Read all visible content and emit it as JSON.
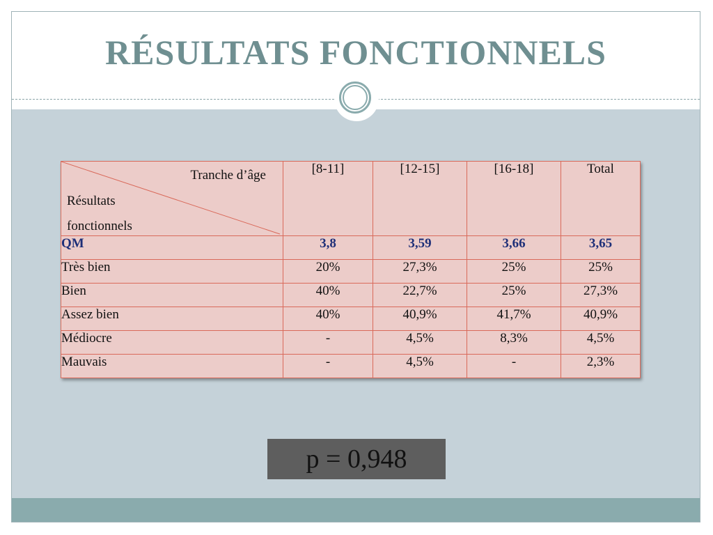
{
  "title": "RÉSULTATS  FONCTIONNELS",
  "table": {
    "corner_top": "Tranche d’âge",
    "corner_bottom_line1": "Résultats",
    "corner_bottom_line2": "fonctionnels",
    "columns": [
      "[8-11]",
      "[12-15]",
      "[16-18]",
      "Total"
    ],
    "rows": [
      {
        "label": "QM",
        "values": [
          "3,8",
          "3,59",
          "3,66",
          "3,65"
        ]
      },
      {
        "label": "Très bien",
        "values": [
          "20%",
          "27,3%",
          "25%",
          "25%"
        ]
      },
      {
        "label": "Bien",
        "values": [
          "40%",
          "22,7%",
          "25%",
          "27,3%"
        ]
      },
      {
        "label": "Assez bien",
        "values": [
          "40%",
          "40,9%",
          "41,7%",
          "40,9%"
        ]
      },
      {
        "label": "Médiocre",
        "values": [
          "-",
          "4,5%",
          "8,3%",
          "4,5%"
        ]
      },
      {
        "label": "Mauvais",
        "values": [
          "-",
          "4,5%",
          "-",
          "2,3%"
        ]
      }
    ]
  },
  "p_value": "p = 0,948",
  "colors": {
    "title": "#6f8f91",
    "table_fill": "#ecccc9",
    "table_border": "#d9695a",
    "qm_text": "#1e2f78",
    "content_bg": "#c5d2d9",
    "band": "#8aabad",
    "p_box": "#5e5e5e"
  }
}
